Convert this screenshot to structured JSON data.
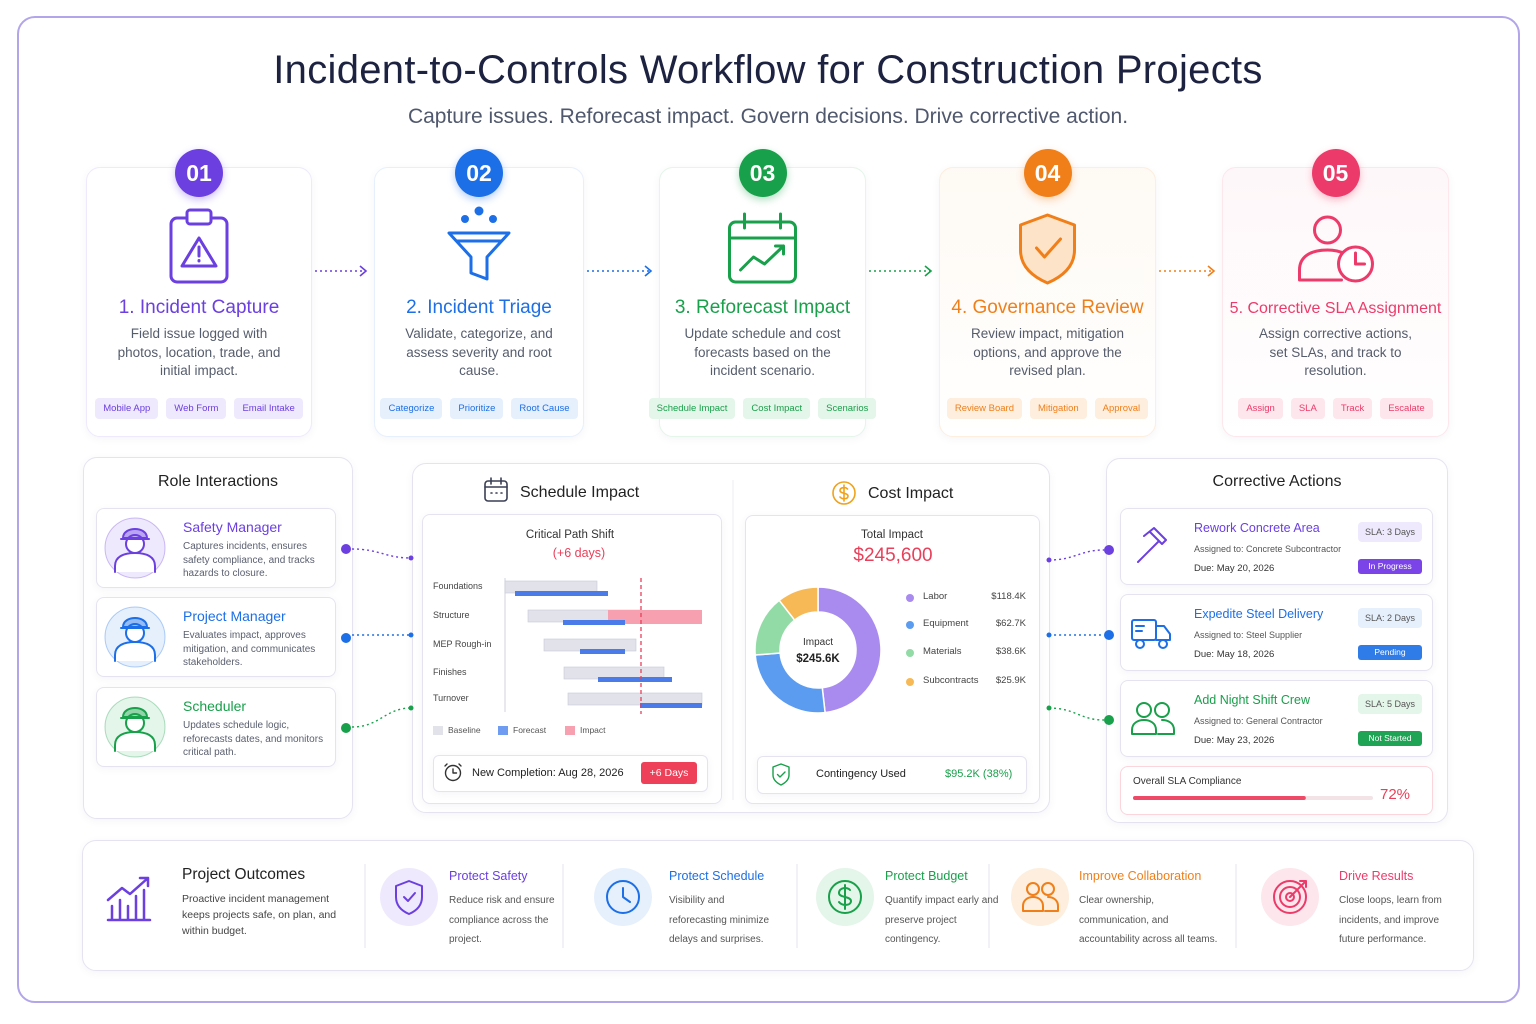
{
  "header": {
    "title": "Incident-to-Controls Workflow for Construction Projects",
    "subtitle": "Capture issues. Reforecast impact. Govern decisions. Drive corrective action."
  },
  "steps": [
    {
      "number": "01",
      "title": "1. Incident Capture",
      "description": "Field issue logged with photos, location, trade, and initial impact.",
      "tags": [
        "Mobile App",
        "Web Form",
        "Email Intake"
      ]
    },
    {
      "number": "02",
      "title": "2. Incident Triage",
      "description": "Validate, categorize, and assess severity and root cause.",
      "tags": [
        "Categorize",
        "Prioritize",
        "Root Cause"
      ]
    },
    {
      "number": "03",
      "title": "3. Reforecast Impact",
      "description": "Update schedule and cost forecasts based on the incident scenario.",
      "tags": [
        "Schedule Impact",
        "Cost Impact",
        "Scenarios"
      ]
    },
    {
      "number": "04",
      "title": "4. Governance Review",
      "description": "Review impact, mitigation options, and approve the revised plan.",
      "tags": [
        "Review Board",
        "Mitigation",
        "Approval"
      ]
    },
    {
      "number": "05",
      "title": "5. Corrective SLA Assignment",
      "description": "Assign corrective actions, set SLAs, and track to resolution.",
      "tags": [
        "Assign",
        "SLA",
        "Track",
        "Escalate"
      ]
    }
  ],
  "roles": {
    "title": "Role Interactions",
    "items": [
      {
        "name": "Safety Manager",
        "description": "Captures incidents, ensures safety compliance, and tracks hazards to closure."
      },
      {
        "name": "Project Manager",
        "description": "Evaluates impact, approves mitigation, and communicates stakeholders."
      },
      {
        "name": "Scheduler",
        "description": "Updates schedule logic, reforecasts dates, and monitors critical path."
      }
    ]
  },
  "schedule": {
    "title": "Schedule Impact",
    "chart_title": "Critical Path Shift",
    "shift": "(+6 days)",
    "tasks": [
      "Foundations",
      "Structure",
      "MEP Rough-in",
      "Finishes",
      "Turnover"
    ],
    "legend": [
      "Baseline",
      "Forecast",
      "Impact"
    ],
    "completion": "New Completion: Aug 28, 2026",
    "completion_badge": "+6 Days"
  },
  "cost": {
    "title": "Cost Impact",
    "total_label": "Total Impact",
    "total": "$245,600",
    "center_label": "Impact",
    "center_value": "$245.6K",
    "categories": [
      "Labor",
      "Equipment",
      "Materials",
      "Subcontracts"
    ],
    "values": [
      118.4,
      62.7,
      38.6,
      25.9
    ],
    "value_labels": [
      "$118.4K",
      "$62.7K",
      "$38.6K",
      "$25.9K"
    ],
    "colors": [
      "#a98bf0",
      "#5b9cf0",
      "#93dba6",
      "#f7b955"
    ],
    "contingency_label": "Contingency Used",
    "contingency": "$95.2K (38%)"
  },
  "actions": {
    "title": "Corrective Actions",
    "items": [
      {
        "title": "Rework Concrete Area",
        "assigned": "Assigned to: Concrete Subcontractor",
        "due": "Due: May 20, 2026",
        "sla": "SLA: 3 Days",
        "status": "In Progress"
      },
      {
        "title": "Expedite Steel Delivery",
        "assigned": "Assigned to: Steel Supplier",
        "due": "Due: May 18, 2026",
        "sla": "SLA: 2 Days",
        "status": "Pending"
      },
      {
        "title": "Add Night Shift Crew",
        "assigned": "Assigned to: General Contractor",
        "due": "Due: May 23, 2026",
        "sla": "SLA: 5 Days",
        "status": "Not Started"
      }
    ],
    "compliance": {
      "label": "Overall SLA Compliance",
      "value": 72,
      "value_label": "72%"
    }
  },
  "outcomes": {
    "title": "Project Outcomes",
    "description": "Proactive incident management keeps projects safe, on plan, and within budget.",
    "items": [
      {
        "title": "Protect Safety",
        "description": "Reduce risk and ensure compliance across the project."
      },
      {
        "title": "Protect Schedule",
        "description": "Visibility and reforecasting minimize delays and surprises."
      },
      {
        "title": "Protect Budget",
        "description": "Quantify impact early and preserve project contingency."
      },
      {
        "title": "Improve Collaboration",
        "description": "Clear ownership, communication, and accountability across all teams."
      },
      {
        "title": "Drive Results",
        "description": "Close loops, learn from incidents, and improve future performance."
      }
    ]
  }
}
